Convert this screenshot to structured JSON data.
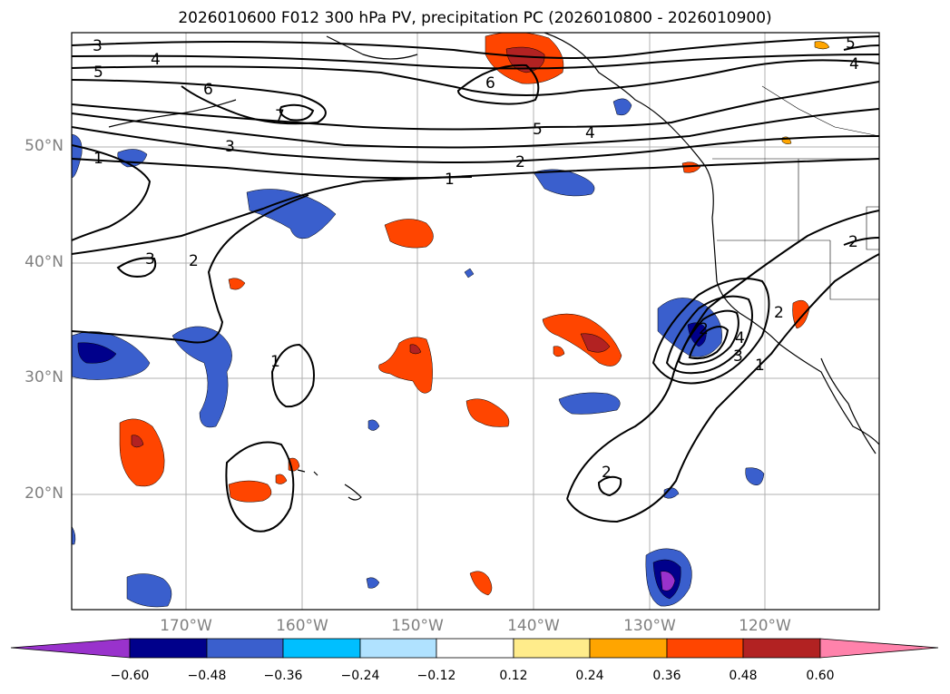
{
  "title": "2026010600 F012 300 hPa PV, precipitation PC (2026010800 - 2026010900)",
  "lat_labels": [
    "50°N",
    "40°N",
    "30°N",
    "20°N"
  ],
  "lon_labels": [
    "170°W",
    "160°W",
    "150°W",
    "140°W",
    "130°W",
    "120°W"
  ],
  "colorbar": {
    "ticks": [
      "−0.60",
      "−0.48",
      "−0.36",
      "−0.24",
      "−0.12",
      "0.12",
      "0.24",
      "0.36",
      "0.48",
      "0.60"
    ],
    "colors": [
      "#9932cc",
      "#00008b",
      "#3a5fcd",
      "#00bfff",
      "#b0e2ff",
      "#ffffff",
      "#ffec8b",
      "#ffa500",
      "#ff4500",
      "#b22222",
      "#ff82ab"
    ]
  },
  "contour_labels": [
    "3",
    "4",
    "5",
    "6",
    "7",
    "6",
    "5",
    "4",
    "3",
    "2",
    "1",
    "1",
    "2",
    "3",
    "1",
    "2",
    "2",
    "3",
    "4",
    "1",
    "2",
    "5",
    "4",
    "2"
  ],
  "colors": {
    "ocean": "#ffffff",
    "grid": "#b0b0b0",
    "contour": "#000000",
    "coast": "#000000"
  }
}
